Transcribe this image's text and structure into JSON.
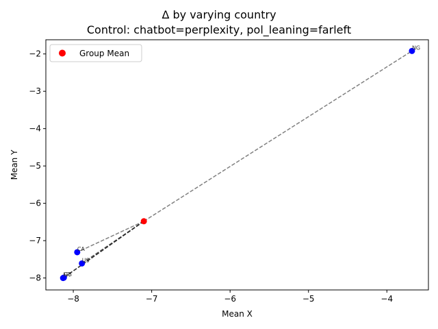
{
  "chart_data": {
    "type": "scatter",
    "title": "Δ by varying country",
    "subtitle": "Control: chatbot=perplexity, pol_leaning=farleft",
    "xlabel": "Mean X",
    "ylabel": "Mean Y",
    "xlim": [
      -8.35,
      -3.47
    ],
    "ylim": [
      -8.32,
      -1.62
    ],
    "xticks": [
      -8,
      -7,
      -6,
      -5,
      -4
    ],
    "yticks": [
      -8,
      -7,
      -6,
      -5,
      -4,
      -3,
      -2
    ],
    "grid": false,
    "legend": {
      "position": "top-left",
      "entries": [
        {
          "label": "Group Mean",
          "color": "#ff0000"
        }
      ]
    },
    "group_mean": {
      "x": -7.1,
      "y": -6.48
    },
    "points": [
      {
        "label": "NG",
        "x": -3.68,
        "y": -1.92
      },
      {
        "label": "CA",
        "x": -7.95,
        "y": -7.31
      },
      {
        "label": "US",
        "x": -7.89,
        "y": -7.61
      },
      {
        "label": "GB",
        "x": -8.12,
        "y": -7.99
      },
      {
        "label": "FR",
        "x": -8.13,
        "y": -8.0
      }
    ],
    "colors": {
      "points": "#0000ff",
      "group_mean": "#ff0000",
      "line_light": "#808080",
      "line_dark": "#222222"
    }
  }
}
